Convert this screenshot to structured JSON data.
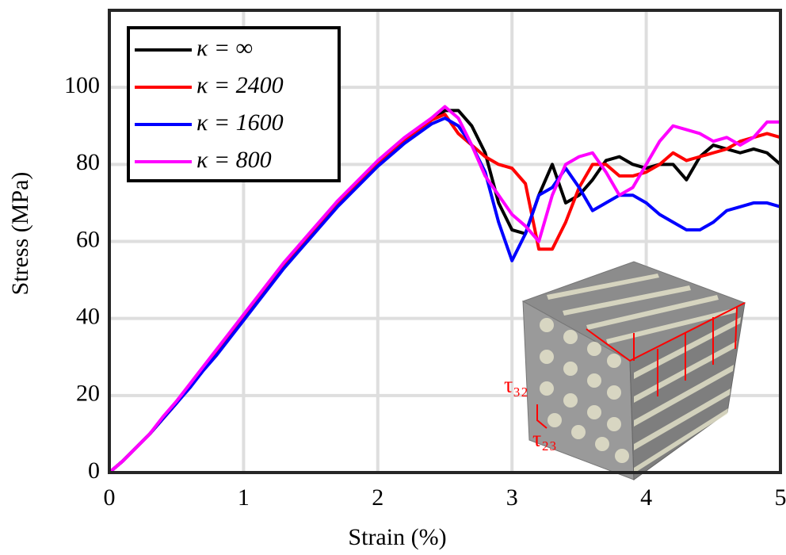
{
  "chart_data": {
    "type": "line",
    "xlabel": "Strain (%)",
    "ylabel": "Stress (MPa)",
    "xlim": [
      0,
      5
    ],
    "ylim": [
      0,
      120
    ],
    "xticks": [
      0,
      1,
      2,
      3,
      4,
      5
    ],
    "yticks": [
      0,
      20,
      40,
      60,
      80,
      100
    ],
    "grid": true,
    "legend": "upper left",
    "x": [
      0,
      0.1,
      0.2,
      0.3,
      0.4,
      0.5,
      0.6,
      0.7,
      0.8,
      0.9,
      1.0,
      1.1,
      1.2,
      1.3,
      1.4,
      1.5,
      1.6,
      1.7,
      1.8,
      1.9,
      2.0,
      2.1,
      2.2,
      2.3,
      2.4,
      2.5,
      2.6,
      2.7,
      2.8,
      2.9,
      3.0,
      3.1,
      3.2,
      3.3,
      3.4,
      3.5,
      3.6,
      3.7,
      3.8,
      3.9,
      4.0,
      4.1,
      4.2,
      4.3,
      4.4,
      4.5,
      4.6,
      4.7,
      4.8,
      4.9,
      5.0
    ],
    "series": [
      {
        "name": "κ = ∞",
        "color": "#000000",
        "values": [
          0,
          3,
          6.5,
          10,
          14,
          18,
          22.5,
          27,
          31.5,
          36,
          40.5,
          45,
          49.5,
          54,
          58,
          62,
          66,
          70,
          73.5,
          77,
          80.5,
          83.5,
          86.5,
          89,
          91.5,
          94,
          94,
          90,
          83,
          70,
          63,
          62,
          72,
          80,
          70,
          72,
          76,
          81,
          82,
          80,
          79,
          80,
          80,
          76,
          82,
          85,
          84,
          83,
          84,
          83,
          80
        ]
      },
      {
        "name": "κ = 2400",
        "color": "#ff0000",
        "values": [
          0,
          3,
          6.5,
          10,
          14,
          18,
          22.5,
          27,
          31.5,
          36,
          40.5,
          45,
          49.5,
          54,
          58,
          62,
          66,
          70,
          73.5,
          77,
          80.5,
          83.5,
          86.5,
          89,
          91.5,
          93,
          88,
          85,
          82,
          80,
          79,
          75,
          58,
          58,
          65,
          74,
          80,
          80,
          77,
          77,
          78,
          80,
          83,
          81,
          82,
          83,
          84,
          86,
          87,
          88,
          87
        ]
      },
      {
        "name": "κ = 1600",
        "color": "#0000ff",
        "values": [
          0,
          3,
          6.5,
          10,
          14,
          18,
          22,
          26.5,
          30.5,
          35,
          39.5,
          44,
          48.5,
          53,
          57,
          61,
          65,
          69,
          72.5,
          76,
          79.5,
          82.5,
          85.5,
          88,
          90.5,
          92,
          90,
          85,
          78,
          65,
          55,
          62,
          72,
          74,
          79,
          74,
          68,
          70,
          72,
          72,
          70,
          67,
          65,
          63,
          63,
          65,
          68,
          69,
          70,
          70,
          69
        ]
      },
      {
        "name": "κ = 800",
        "color": "#ff00ff",
        "values": [
          0,
          3,
          6.5,
          10,
          14.5,
          18.5,
          23,
          27.5,
          32,
          36.5,
          41,
          45.5,
          50,
          54.5,
          58.5,
          62.5,
          66.5,
          70.5,
          74,
          77.5,
          81,
          84,
          87,
          89.5,
          92,
          95,
          92,
          85,
          77,
          72,
          67,
          64,
          60,
          72,
          80,
          82,
          83,
          78,
          72,
          74,
          80,
          86,
          90,
          89,
          88,
          86,
          87,
          85,
          87,
          91,
          91
        ]
      }
    ],
    "annotations": [
      "τ₃₂",
      "τ₂₃"
    ]
  }
}
